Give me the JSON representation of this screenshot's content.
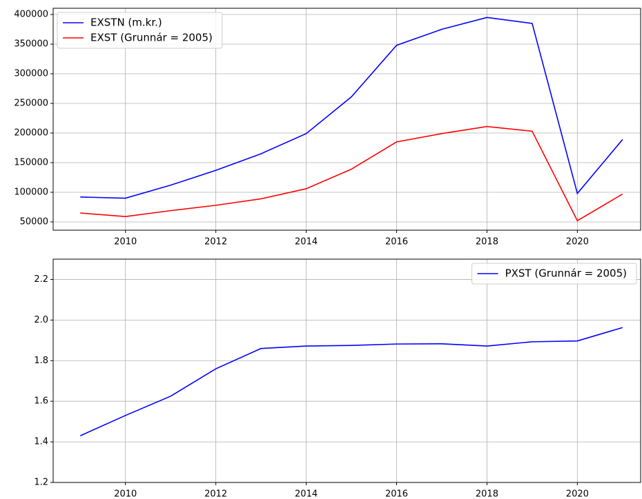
{
  "chart_data": [
    {
      "type": "line",
      "x": [
        2009,
        2010,
        2011,
        2012,
        2013,
        2014,
        2015,
        2016,
        2017,
        2018,
        2019,
        2020,
        2021
      ],
      "series": [
        {
          "name": "EXSTN (m.kr.)",
          "color": "#0000ff",
          "values": [
            92000,
            90000,
            112000,
            137000,
            165000,
            199000,
            261000,
            348000,
            375000,
            395000,
            385000,
            98000,
            189000
          ]
        },
        {
          "name": "EXST (Grunnár = 2005)",
          "color": "#ff0000",
          "values": [
            65000,
            59000,
            69000,
            78000,
            89000,
            106000,
            139000,
            185000,
            199000,
            211000,
            203000,
            52000,
            97000
          ]
        }
      ],
      "xlim": [
        2008.4,
        2021.4
      ],
      "xticks": [
        2010,
        2012,
        2014,
        2016,
        2018,
        2020
      ],
      "ylim": [
        36000,
        410500
      ],
      "yticks": [
        50000,
        100000,
        150000,
        200000,
        250000,
        300000,
        350000,
        400000
      ],
      "grid": true,
      "legend": "upper-left"
    },
    {
      "type": "line",
      "x": [
        2009,
        2010,
        2011,
        2012,
        2013,
        2014,
        2015,
        2016,
        2017,
        2018,
        2019,
        2020,
        2021
      ],
      "series": [
        {
          "name": "PXST (Grunnár = 2005)",
          "color": "#0000ff",
          "values": [
            1.43,
            1.53,
            1.625,
            1.76,
            1.86,
            1.872,
            1.875,
            1.882,
            1.883,
            1.872,
            1.893,
            1.897,
            1.963
          ]
        }
      ],
      "xlim": [
        2008.4,
        2021.4
      ],
      "xticks": [
        2010,
        2012,
        2014,
        2016,
        2018,
        2020
      ],
      "ylim": [
        1.2,
        2.3
      ],
      "yticks": [
        1.2,
        1.4,
        1.6,
        1.8,
        {
          "value": 2.0,
          "label": "2.0"
        },
        2.2
      ],
      "grid": true,
      "legend": "upper-right"
    }
  ]
}
